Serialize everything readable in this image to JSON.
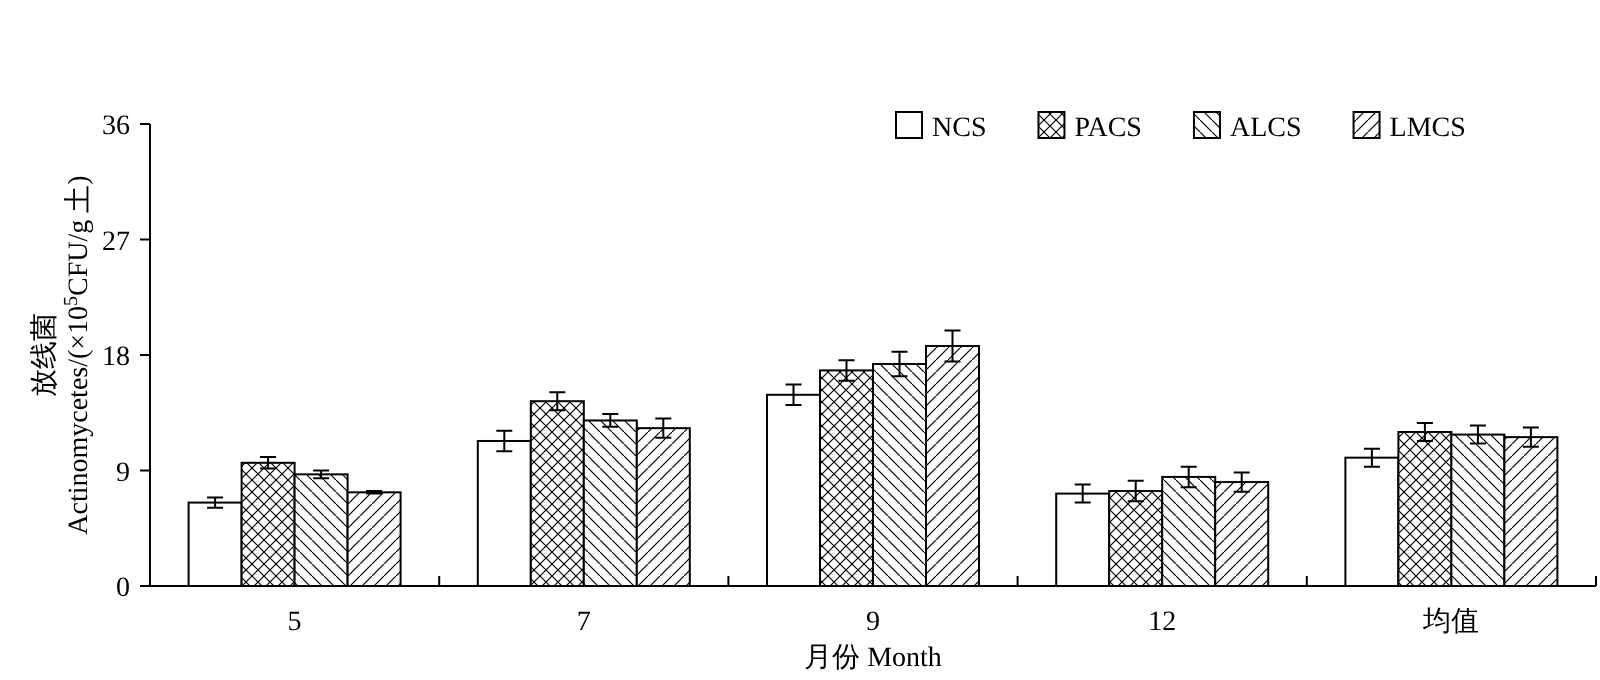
{
  "chart_data": {
    "type": "bar",
    "xlabel": "月份 Month",
    "ylabel": "放线菌\nActinomycetes/(×10$^{5}$CFU/g 土)",
    "categories": [
      "5",
      "7",
      "9",
      "12",
      "均值"
    ],
    "series": [
      {
        "name": "NCS",
        "color": "#ffffff",
        "values": [
          6.5,
          11.3,
          14.9,
          7.2,
          10.0
        ],
        "errors": [
          0.4,
          0.8,
          0.8,
          0.7,
          0.7
        ]
      },
      {
        "name": "PACS",
        "color": "#000000",
        "values": [
          9.6,
          14.4,
          16.8,
          7.4,
          12.0
        ],
        "errors": [
          0.45,
          0.7,
          0.8,
          0.8,
          0.7
        ]
      },
      {
        "name": "ALCS",
        "color": "#000000",
        "values": [
          8.7,
          12.9,
          17.3,
          8.5,
          11.8
        ],
        "errors": [
          0.3,
          0.5,
          0.95,
          0.8,
          0.7
        ]
      },
      {
        "name": "LMCS",
        "color": "#000000",
        "values": [
          7.3,
          12.3,
          18.7,
          8.1,
          11.6
        ],
        "errors": [
          0.1,
          0.75,
          1.2,
          0.75,
          0.75
        ]
      }
    ],
    "ylim": [
      0,
      36
    ],
    "yticks": [
      0,
      9,
      18,
      27,
      36
    ],
    "legend": "top right",
    "grid": false
  }
}
